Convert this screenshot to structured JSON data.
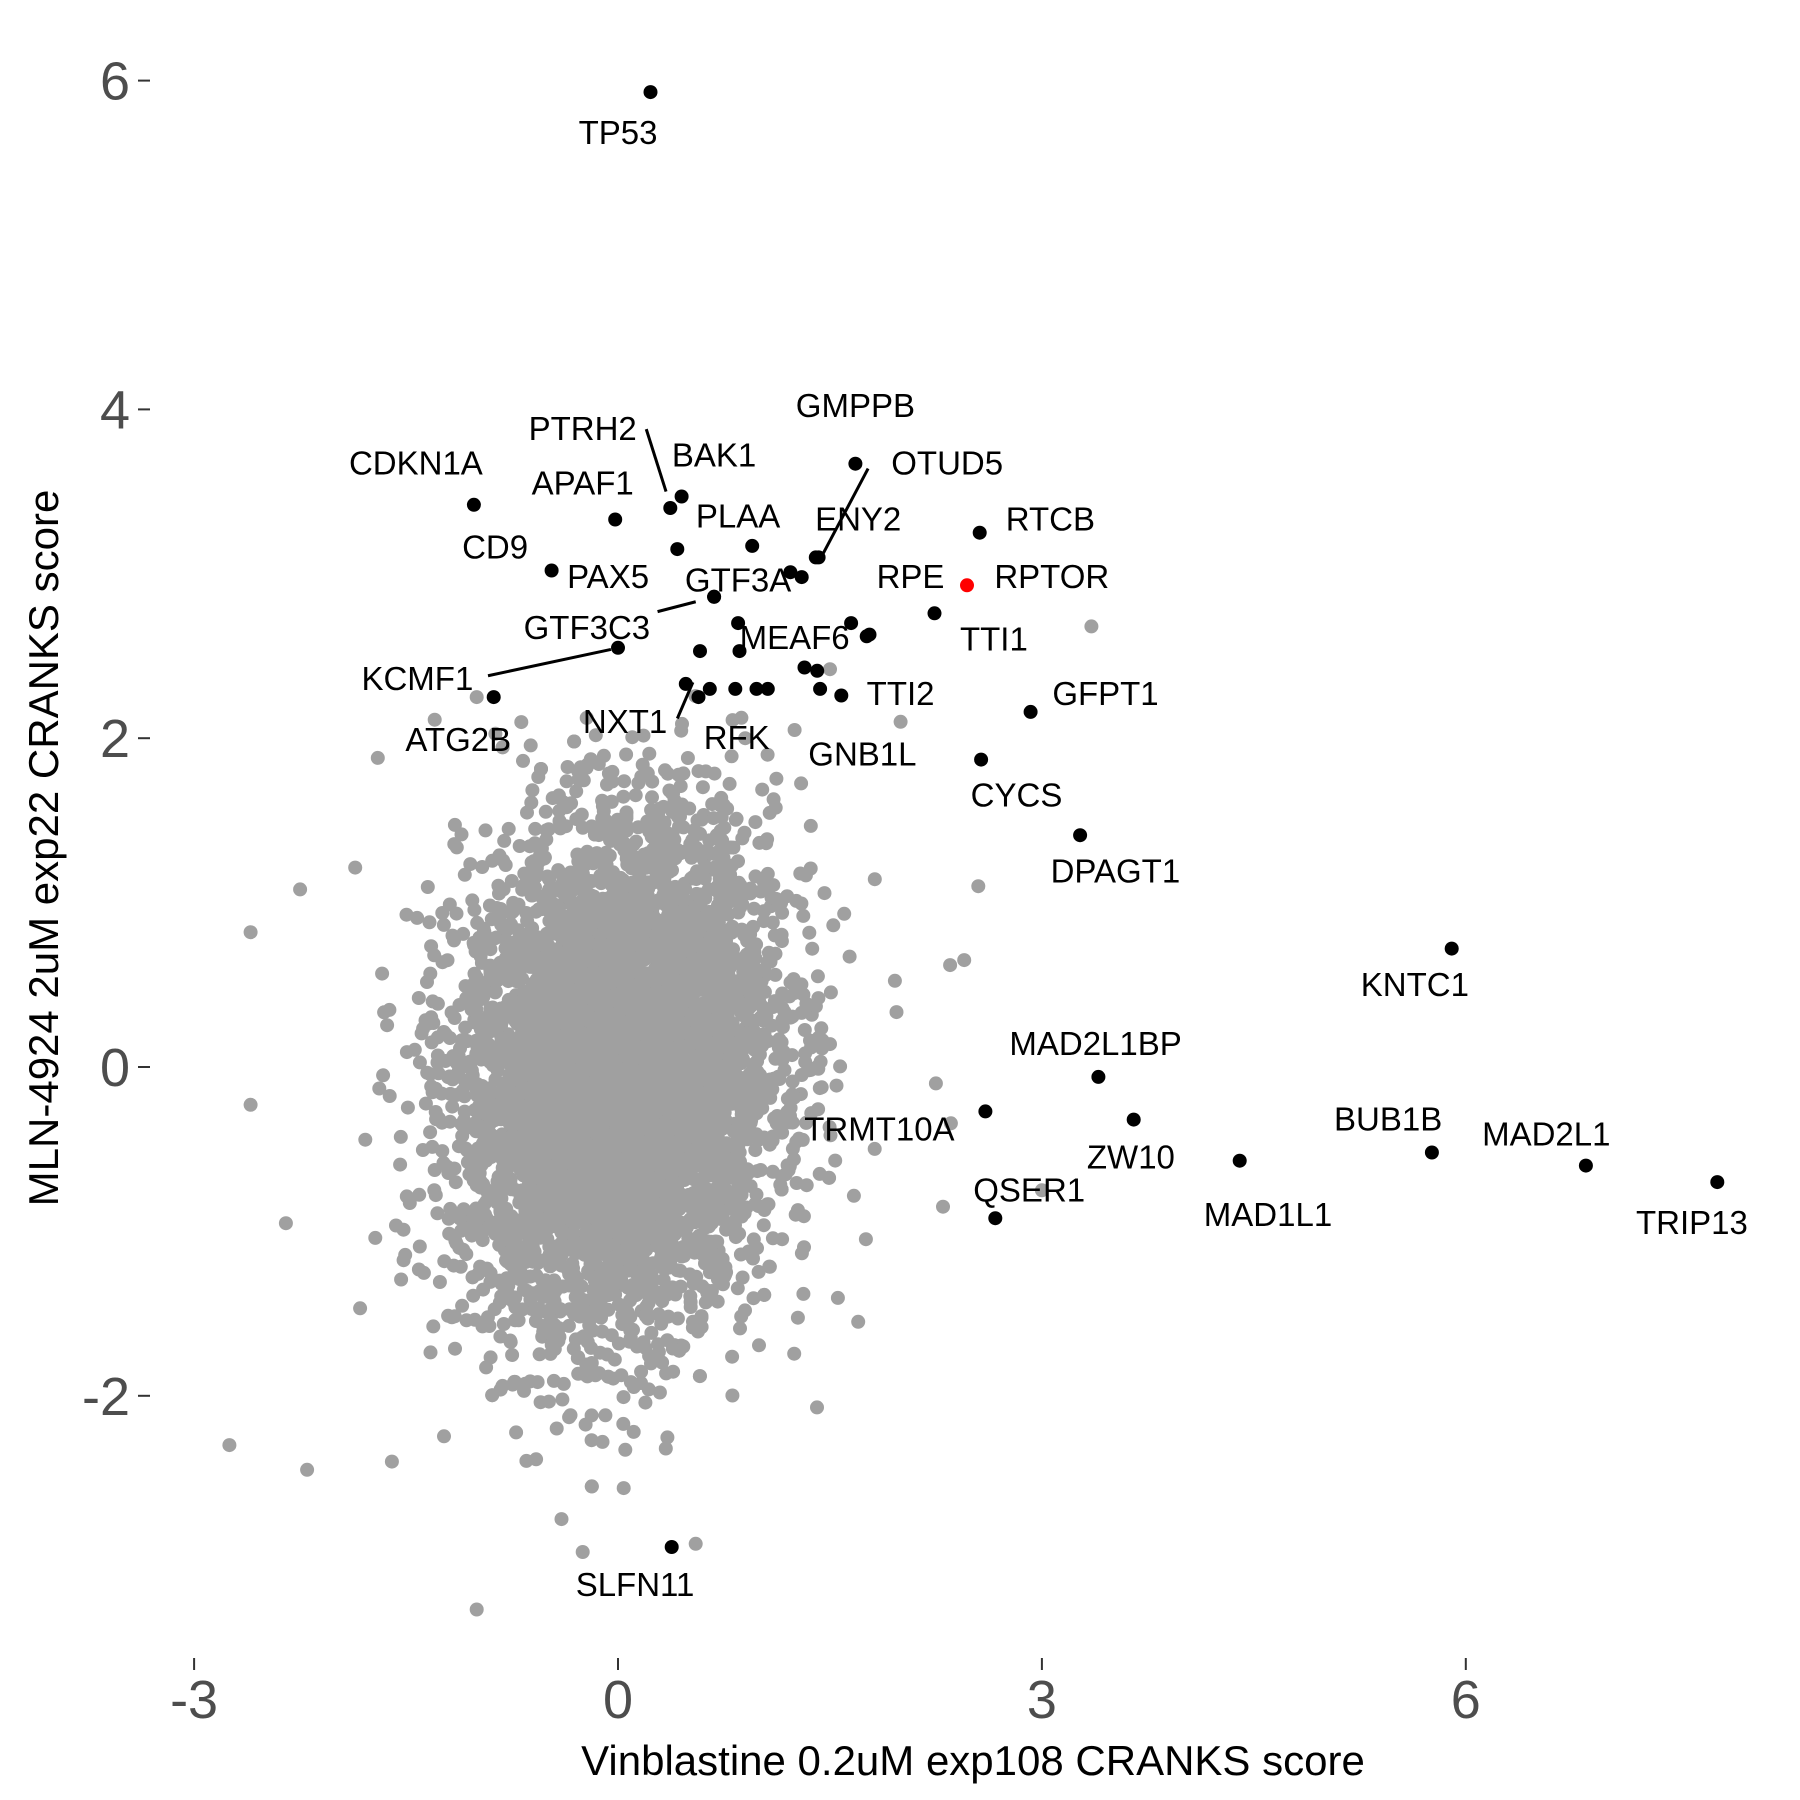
{
  "chart_data": {
    "type": "scatter",
    "xlabel": "Vinblastine 0.2uM exp108 CRANKS score",
    "ylabel": "MLN-4924 2uM exp22 CRANKS score",
    "xlim": [
      -3.3,
      8.1
    ],
    "ylim": [
      -3.55,
      6.25
    ],
    "xticks": [
      -3,
      0,
      3,
      6
    ],
    "yticks": [
      -2,
      0,
      2,
      4,
      6
    ],
    "xtick_labels": [
      "-3",
      "0",
      "3",
      "6"
    ],
    "ytick_labels": [
      "-2",
      "0",
      "2",
      "4",
      "6"
    ],
    "grid": false,
    "legend": "none",
    "colors": {
      "background_points": "#a0a0a0",
      "highlight_points": "#000000",
      "special_point": "#ff0000",
      "tick_text": "#4d4d4d"
    },
    "background_cloud": {
      "description_count": 6000,
      "center": [
        0.0,
        -0.05
      ],
      "spread": [
        0.55,
        0.75
      ],
      "correlation": 0.12
    },
    "background_outliers": [
      [
        -2.75,
        -2.3
      ],
      [
        -2.6,
        0.82
      ],
      [
        -2.6,
        -0.23
      ],
      [
        -2.35,
        -0.95
      ],
      [
        -2.25,
        1.08
      ],
      [
        -2.2,
        -2.45
      ],
      [
        -1.7,
        1.88
      ],
      [
        -1.0,
        -3.3
      ],
      [
        -1.0,
        2.25
      ],
      [
        -0.4,
        -2.75
      ],
      [
        -0.25,
        -2.95
      ],
      [
        0.55,
        -2.9
      ],
      [
        3.35,
        2.68
      ],
      [
        3.0,
        -0.75
      ],
      [
        1.5,
        2.42
      ],
      [
        2.55,
        1.1
      ],
      [
        2.45,
        0.65
      ],
      [
        2.35,
        0.62
      ],
      [
        2.25,
        -0.1
      ],
      [
        2.3,
        -0.85
      ],
      [
        2.0,
        2.1
      ],
      [
        1.25,
        2.05
      ],
      [
        0.9,
        2.0
      ],
      [
        -1.6,
        -2.4
      ],
      [
        1.7,
        -1.55
      ]
    ],
    "highlighted_genes": [
      {
        "name": "TP53",
        "x": 0.23,
        "y": 5.93,
        "label_pos": [
          0.0,
          5.68
        ]
      },
      {
        "name": "CDKN1A",
        "x": -1.02,
        "y": 3.42,
        "label_pos": [
          -1.43,
          3.67
        ]
      },
      {
        "name": "APAF1",
        "x": -0.02,
        "y": 3.33,
        "label_pos": [
          -0.25,
          3.55
        ]
      },
      {
        "name": "PTRH2",
        "x": 0.37,
        "y": 3.4,
        "label_pos": [
          -0.25,
          3.88
        ]
      },
      {
        "name": "BAK1",
        "x": 0.45,
        "y": 3.47,
        "label_pos": [
          0.68,
          3.72
        ]
      },
      {
        "name": "GMPPB",
        "x": 1.68,
        "y": 3.67,
        "label_pos": [
          1.68,
          4.02
        ]
      },
      {
        "name": "OTUD5",
        "x": 1.4,
        "y": 3.1,
        "label_pos": [
          2.33,
          3.67
        ]
      },
      {
        "name": "PLAA",
        "x": 0.95,
        "y": 3.17,
        "label_pos": [
          0.85,
          3.35
        ]
      },
      {
        "name": "CD9",
        "x": -0.47,
        "y": 3.02,
        "label_pos": [
          -0.87,
          3.16
        ]
      },
      {
        "name": "PAX5",
        "x": 0.42,
        "y": 3.15,
        "label_pos": [
          -0.07,
          2.98
        ]
      },
      {
        "name": "ENY2",
        "x": 1.22,
        "y": 3.01,
        "label_pos": [
          1.7,
          3.33
        ]
      },
      {
        "name": "RTCB",
        "x": 2.56,
        "y": 3.25,
        "label_pos": [
          3.06,
          3.33
        ]
      },
      {
        "name": "RPE",
        "x": 2.24,
        "y": 2.76,
        "label_pos": [
          2.07,
          2.98
        ]
      },
      {
        "name": "RPTOR",
        "x": 2.47,
        "y": 2.93,
        "label_pos": [
          3.07,
          2.98
        ],
        "special": true
      },
      {
        "name": "GTF3A",
        "x": 0.68,
        "y": 2.86,
        "label_pos": [
          0.85,
          2.96
        ]
      },
      {
        "name": "GTF3C3",
        "x": 0.68,
        "y": 2.86,
        "label_pos": [
          -0.22,
          2.67
        ]
      },
      {
        "name": "TTI1",
        "x": 1.78,
        "y": 2.63,
        "label_pos": [
          2.66,
          2.6
        ]
      },
      {
        "name": "MEAF6",
        "x": 0.86,
        "y": 2.53,
        "label_pos": [
          1.25,
          2.61
        ]
      },
      {
        "name": "KCMF1",
        "x": 0.0,
        "y": 2.55,
        "label_pos": [
          -1.42,
          2.36
        ]
      },
      {
        "name": "GFPT1",
        "x": 2.92,
        "y": 2.16,
        "label_pos": [
          3.45,
          2.27
        ]
      },
      {
        "name": "TTI2",
        "x": 1.58,
        "y": 2.26,
        "label_pos": [
          2.0,
          2.27
        ]
      },
      {
        "name": "ATG2B",
        "x": -0.88,
        "y": 2.25,
        "label_pos": [
          -1.13,
          1.99
        ]
      },
      {
        "name": "NXT1",
        "x": 0.58,
        "y": 2.53,
        "label_pos": [
          0.05,
          2.1
        ]
      },
      {
        "name": "RFK",
        "x": 0.83,
        "y": 2.3,
        "label_pos": [
          0.84,
          2.0
        ]
      },
      {
        "name": "GNB1L",
        "x": 1.43,
        "y": 2.3,
        "label_pos": [
          1.73,
          1.9
        ]
      },
      {
        "name": "CYCS",
        "x": 2.57,
        "y": 1.87,
        "label_pos": [
          2.82,
          1.65
        ]
      },
      {
        "name": "DPAGT1",
        "x": 3.27,
        "y": 1.41,
        "label_pos": [
          3.52,
          1.19
        ]
      },
      {
        "name": "KNTC1",
        "x": 5.9,
        "y": 0.72,
        "label_pos": [
          5.64,
          0.5
        ]
      },
      {
        "name": "MAD2L1BP",
        "x": 3.4,
        "y": -0.06,
        "label_pos": [
          3.38,
          0.14
        ]
      },
      {
        "name": "TRMT10A",
        "x": 2.6,
        "y": -0.27,
        "label_pos": [
          1.85,
          -0.38
        ]
      },
      {
        "name": "ZW10",
        "x": 3.65,
        "y": -0.32,
        "label_pos": [
          3.63,
          -0.55
        ]
      },
      {
        "name": "BUB1B",
        "x": 5.76,
        "y": -0.52,
        "label_pos": [
          5.45,
          -0.32
        ]
      },
      {
        "name": "MAD2L1",
        "x": 6.85,
        "y": -0.6,
        "label_pos": [
          6.57,
          -0.41
        ]
      },
      {
        "name": "MAD1L1",
        "x": 4.4,
        "y": -0.57,
        "label_pos": [
          4.6,
          -0.9
        ]
      },
      {
        "name": "QSER1",
        "x": 2.67,
        "y": -0.92,
        "label_pos": [
          2.91,
          -0.75
        ]
      },
      {
        "name": "TRIP13",
        "x": 7.78,
        "y": -0.7,
        "label_pos": [
          7.6,
          -0.95
        ]
      },
      {
        "name": "SLFN11",
        "x": 0.38,
        "y": -2.92,
        "label_pos": [
          0.12,
          -3.15
        ]
      }
    ],
    "unlabeled_highlights": [
      [
        0.85,
        2.7
      ],
      [
        1.65,
        2.7
      ],
      [
        1.76,
        2.62
      ],
      [
        1.32,
        2.43
      ],
      [
        1.41,
        2.41
      ],
      [
        0.48,
        2.33
      ],
      [
        0.65,
        2.3
      ],
      [
        0.57,
        2.25
      ],
      [
        0.98,
        2.3
      ],
      [
        1.06,
        2.3
      ],
      [
        1.42,
        3.1
      ],
      [
        1.3,
        2.98
      ]
    ],
    "leader_lines": [
      {
        "from": [
          0.2,
          3.88
        ],
        "to": [
          0.34,
          3.5
        ]
      },
      {
        "from": [
          1.77,
          3.64
        ],
        "to": [
          1.45,
          3.12
        ]
      },
      {
        "from": [
          0.28,
          2.77
        ],
        "to": [
          0.55,
          2.83
        ]
      },
      {
        "from": [
          -0.92,
          2.38
        ],
        "to": [
          -0.05,
          2.54
        ]
      },
      {
        "from": [
          0.42,
          2.12
        ],
        "to": [
          0.53,
          2.34
        ]
      }
    ]
  }
}
